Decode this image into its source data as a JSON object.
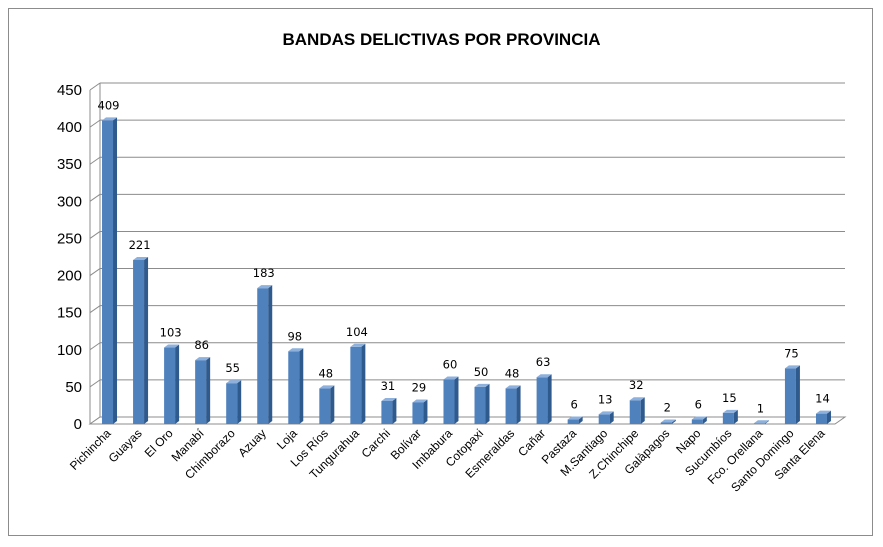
{
  "chart_data": {
    "type": "bar",
    "title": "BANDAS DELICTIVAS POR PROVINCIA",
    "xlabel": "",
    "ylabel": "",
    "ylim": [
      0,
      450
    ],
    "yticks": [
      "0",
      "50",
      "100",
      "150",
      "200",
      "250",
      "300",
      "350",
      "400",
      "450"
    ],
    "grid": true,
    "legend": "none",
    "bar_color": "#4f81bd",
    "categories": [
      "Pichincha",
      "Guayas",
      "El Oro",
      "Manabí",
      "Chimborazo",
      "Azuay",
      "Loja",
      "Los Ríos",
      "Tungurahua",
      "Carchi",
      "Bolívar",
      "Imbabura",
      "Cotopaxi",
      "Esmeraldas",
      "Cañar",
      "Pastaza",
      "M.Santiago",
      "Z.Chinchipe",
      "Galàpagos",
      "Napo",
      "Sucumbíos",
      "Fco. Orellana",
      "Santo Domingo",
      "Santa Elena"
    ],
    "values": [
      409,
      221,
      103,
      86,
      55,
      183,
      98,
      48,
      104,
      31,
      29,
      60,
      50,
      48,
      63,
      6,
      13,
      32,
      2,
      6,
      15,
      1,
      75,
      14
    ]
  }
}
